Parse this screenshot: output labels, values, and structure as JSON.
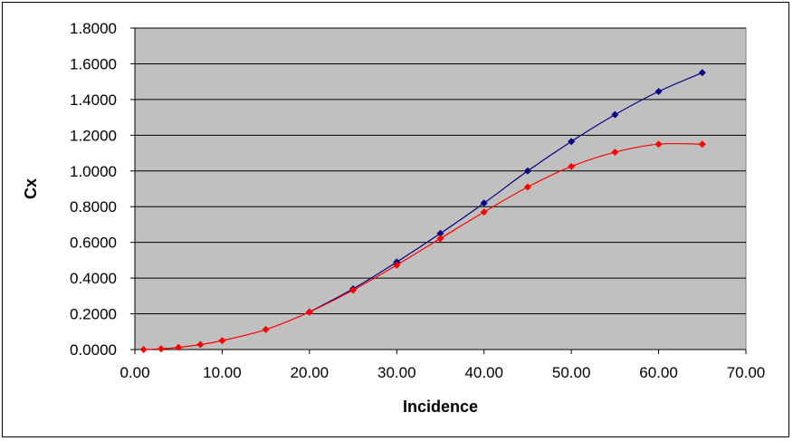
{
  "chart_data": {
    "type": "line",
    "title": "",
    "xlabel": "Incidence",
    "ylabel": "Cx",
    "xlim": [
      0,
      70
    ],
    "ylim": [
      0,
      1.8
    ],
    "x_ticks": [
      "0.00",
      "10.00",
      "20.00",
      "30.00",
      "40.00",
      "50.00",
      "60.00",
      "70.00"
    ],
    "y_ticks": [
      "0.0000",
      "0.2000",
      "0.4000",
      "0.6000",
      "0.8000",
      "1.0000",
      "1.2000",
      "1.4000",
      "1.6000",
      "1.8000"
    ],
    "grid": "horizontal",
    "legend": "none",
    "plot_background": "#c0c0c0",
    "series": [
      {
        "color": "#000080",
        "points": [
          [
            20,
            0.21
          ],
          [
            25,
            0.34
          ],
          [
            30,
            0.49
          ],
          [
            35,
            0.65
          ],
          [
            40,
            0.82
          ],
          [
            45,
            1.0
          ],
          [
            50,
            1.165
          ],
          [
            55,
            1.315
          ],
          [
            60,
            1.445
          ],
          [
            65,
            1.55
          ]
        ]
      },
      {
        "color": "#ff0000",
        "points": [
          [
            1,
            0.0
          ],
          [
            3,
            0.004
          ],
          [
            5,
            0.012
          ],
          [
            7.5,
            0.028
          ],
          [
            10,
            0.05
          ],
          [
            15,
            0.112
          ],
          [
            20,
            0.21
          ],
          [
            25,
            0.333
          ],
          [
            30,
            0.473
          ],
          [
            35,
            0.622
          ],
          [
            40,
            0.77
          ],
          [
            45,
            0.91
          ],
          [
            50,
            1.025
          ],
          [
            55,
            1.105
          ],
          [
            60,
            1.15
          ],
          [
            65,
            1.15
          ]
        ]
      }
    ]
  }
}
